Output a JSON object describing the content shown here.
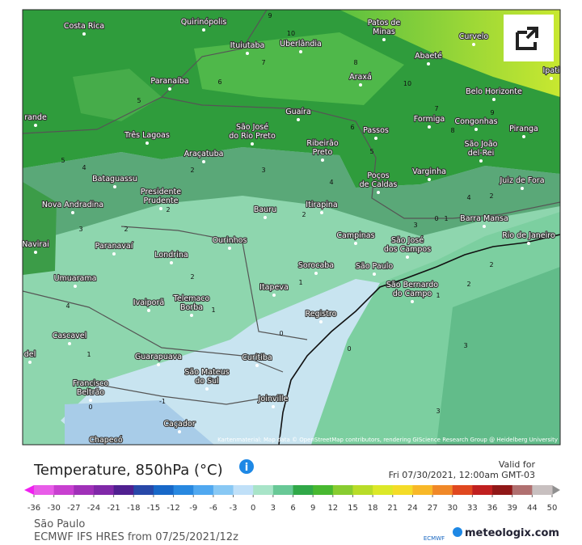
{
  "map": {
    "cities": [
      {
        "lines": [
          "Costa Rica"
        ]
      },
      {
        "lines": [
          "Quirinópolis"
        ]
      },
      {
        "lines": [
          "Patos de",
          "Minas"
        ]
      },
      {
        "lines": [
          "Curvelo"
        ]
      },
      {
        "lines": [
          "Ituiutaba"
        ]
      },
      {
        "lines": [
          "Uberlândia"
        ]
      },
      {
        "lines": [
          "Abaeté"
        ]
      },
      {
        "lines": [
          "Ipati"
        ]
      },
      {
        "lines": [
          "Paranaíba"
        ]
      },
      {
        "lines": [
          "Araxá"
        ]
      },
      {
        "lines": [
          "Belo Horizonte"
        ]
      },
      {
        "lines": [
          "Guaíra"
        ]
      },
      {
        "lines": [
          "Formiga"
        ]
      },
      {
        "lines": [
          "Congonhas"
        ]
      },
      {
        "lines": [
          "Piranga"
        ]
      },
      {
        "lines": [
          "rande"
        ]
      },
      {
        "lines": [
          "São José",
          "do Rio Preto"
        ]
      },
      {
        "lines": [
          "Passos"
        ]
      },
      {
        "lines": [
          "Três Lagoas"
        ]
      },
      {
        "lines": [
          "Ribeirão",
          "Preto"
        ]
      },
      {
        "lines": [
          "São João",
          "del-Rei"
        ]
      },
      {
        "lines": [
          "Araçatuba"
        ]
      },
      {
        "lines": [
          "Varginha"
        ]
      },
      {
        "lines": [
          "Poços",
          "de Caldas"
        ]
      },
      {
        "lines": [
          "Juiz de Fora"
        ]
      },
      {
        "lines": [
          "Bataguassu"
        ]
      },
      {
        "lines": [
          "Presidente",
          "Prudente"
        ]
      },
      {
        "lines": [
          "Bauru"
        ]
      },
      {
        "lines": [
          "Itirapina"
        ]
      },
      {
        "lines": [
          "Barra Mansa"
        ]
      },
      {
        "lines": [
          "Nova Andradina"
        ]
      },
      {
        "lines": [
          "Campinas"
        ]
      },
      {
        "lines": [
          "São José",
          "dos Campos"
        ]
      },
      {
        "lines": [
          "Rio de Janeiro"
        ]
      },
      {
        "lines": [
          "Navirai"
        ]
      },
      {
        "lines": [
          "Paranavaí"
        ]
      },
      {
        "lines": [
          "Ourinhos"
        ]
      },
      {
        "lines": [
          "Londrina"
        ]
      },
      {
        "lines": [
          "Sorocaba"
        ]
      },
      {
        "lines": [
          "São Paulo"
        ]
      },
      {
        "lines": [
          "Umuarama"
        ]
      },
      {
        "lines": [
          "São Bernardo",
          "do Campo"
        ]
      },
      {
        "lines": [
          "Itapeva"
        ]
      },
      {
        "lines": [
          "Ivaiporã"
        ]
      },
      {
        "lines": [
          "Telemaco",
          "Borba"
        ]
      },
      {
        "lines": [
          "Registro"
        ]
      },
      {
        "lines": [
          "Cascavel"
        ]
      },
      {
        "lines": [
          "Guarapuava"
        ]
      },
      {
        "lines": [
          "Curitiba"
        ]
      },
      {
        "lines": [
          "del"
        ]
      },
      {
        "lines": [
          "São Mateus",
          "do Sul"
        ]
      },
      {
        "lines": [
          "Francisco",
          "Beltrão"
        ]
      },
      {
        "lines": [
          "Joinville"
        ]
      },
      {
        "lines": [
          "Caçador"
        ]
      },
      {
        "lines": [
          "Chapecó"
        ]
      }
    ],
    "contour_labels": [
      "10",
      "9",
      "7",
      "6",
      "5",
      "8",
      "10",
      "9",
      "8",
      "7",
      "6",
      "5",
      "4",
      "3",
      "2",
      "5",
      "4",
      "3",
      "2",
      "2",
      "4",
      "2",
      "3",
      "0",
      "1",
      "2",
      "2",
      "1",
      "2",
      "1",
      "4",
      "1",
      "0",
      "-1",
      "0",
      "0",
      "3",
      "3",
      "1",
      "2"
    ],
    "attribution": "Kartenmaterial: Map data © OpenStreetMap contributors, rendering GIScience Research Group @ Heidelberg University"
  },
  "legend": {
    "title": "Temperature, 850hPa (°C)",
    "valid_label": "Valid for",
    "valid_time": "Fri 07/30/2021, 12:00am GMT-03",
    "ticks": [
      -36,
      -30,
      -27,
      -24,
      -21,
      -18,
      -15,
      -12,
      -9,
      -6,
      -3,
      0,
      3,
      6,
      9,
      12,
      15,
      18,
      21,
      24,
      27,
      30,
      33,
      36,
      39,
      44,
      50
    ],
    "colors": [
      "#e85ce8",
      "#c840d0",
      "#a030b8",
      "#8028a8",
      "#502090",
      "#2848a8",
      "#1868c8",
      "#2888e0",
      "#50a8f0",
      "#88c8f4",
      "#c0e0f8",
      "#a8e4c8",
      "#68c896",
      "#30a848",
      "#48b830",
      "#88cc30",
      "#b8dc28",
      "#dce828",
      "#f4dc28",
      "#f8b828",
      "#f08828",
      "#e04820",
      "#c02020",
      "#901818",
      "#b07070",
      "#c8c0c0"
    ],
    "low_color": "#f020f0",
    "high_color": "#909090"
  },
  "footer": {
    "region": "São Paulo",
    "model": "ECMWF IFS HRES from 07/25/2021/12z",
    "ecmwf": "ECMWF",
    "brand": "meteologix.com"
  }
}
